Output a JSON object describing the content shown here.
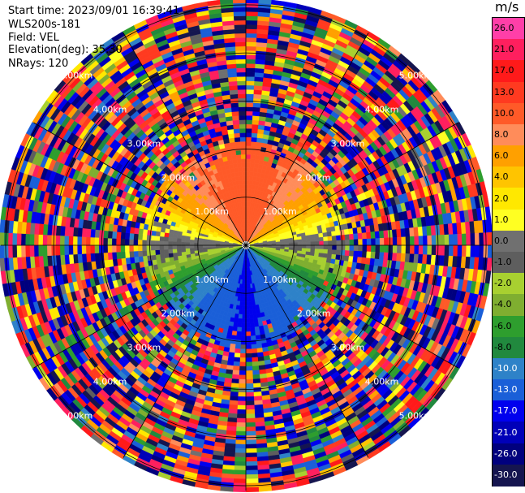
{
  "header": {
    "start_time": "Start time: 2023/09/01 16:39:41",
    "instrument": "WLS200s-181",
    "field": "Field: VEL",
    "elevation": "Elevation(deg): 35.30",
    "nrays": "NRays: 120"
  },
  "colorbar": {
    "unit": "m/s",
    "ticks": [
      "26.0",
      "21.0",
      "17.0",
      "13.0",
      "10.0",
      "8.0",
      "6.0",
      "4.0",
      "2.0",
      "1.0",
      "0.0",
      "-1.0",
      "-2.0",
      "-4.0",
      "-6.0",
      "-8.0",
      "-10.0",
      "-13.0",
      "-17.0",
      "-21.0",
      "-26.0",
      "-30.0"
    ],
    "colors": [
      "#ff3fa8",
      "#ff1f5e",
      "#ff1a1a",
      "#ff3a20",
      "#ff5a28",
      "#ff8c5a",
      "#ffa000",
      "#ffc400",
      "#ffe800",
      "#ffff22",
      "#707070",
      "#5e5e5e",
      "#a8d030",
      "#7fae30",
      "#2e9e2e",
      "#21893e",
      "#2e82c8",
      "#1a5fd8",
      "#0000ee",
      "#0000b8",
      "#00007e",
      "#15154f"
    ]
  },
  "chart_data": {
    "type": "heatmap",
    "subtype": "radar-ppi",
    "field": "VEL",
    "n_rays": 120,
    "range_rings_km": [
      1.0,
      2.0,
      3.0,
      4.0,
      5.0
    ],
    "range_ring_labels": [
      "1.00km",
      "2.00km",
      "3.00km",
      "4.00km",
      "5.00km"
    ],
    "max_range_km": 5.1,
    "value_range": [
      -30.0,
      26.0
    ],
    "velocity_by_azimuth_deg": [
      {
        "az": 0,
        "vel": 12
      },
      {
        "az": 30,
        "vel": 10
      },
      {
        "az": 60,
        "vel": 6
      },
      {
        "az": 75,
        "vel": 1.5
      },
      {
        "az": 90,
        "vel": 0
      },
      {
        "az": 105,
        "vel": -2
      },
      {
        "az": 120,
        "vel": -7
      },
      {
        "az": 150,
        "vel": -11
      },
      {
        "az": 180,
        "vel": -14
      },
      {
        "az": 210,
        "vel": -11
      },
      {
        "az": 240,
        "vel": -7
      },
      {
        "az": 255,
        "vel": -2
      },
      {
        "az": 270,
        "vel": 0
      },
      {
        "az": 285,
        "vel": 1.5
      },
      {
        "az": 300,
        "vel": 6
      },
      {
        "az": 330,
        "vel": 10
      }
    ],
    "clean_range_km": 2.1,
    "noise_beyond_km": 2.1
  }
}
